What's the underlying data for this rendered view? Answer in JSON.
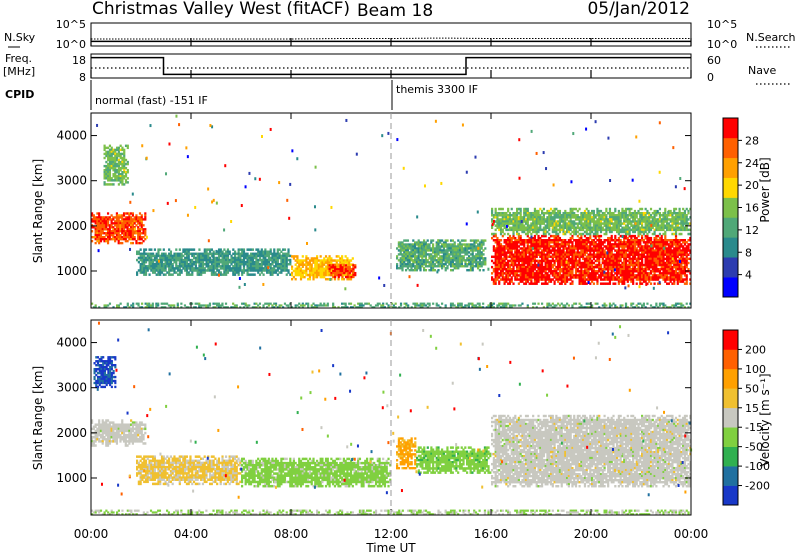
{
  "header": {
    "station": "Christmas Valley West (fitACF)",
    "beam": "Beam 18",
    "date": "05/Jan/2012"
  },
  "nsky": {
    "label": "N.Sky",
    "left_ticks": [
      "10^5",
      "10^0"
    ],
    "right_label": "N.Search",
    "right_ticks": [
      "10^5",
      "10^0"
    ]
  },
  "freq": {
    "label_line1": "Freq.",
    "label_line2": "[MHz]",
    "left_ticks": [
      "18",
      "8"
    ],
    "right_label": "Nave",
    "right_ticks": [
      "60",
      "0"
    ]
  },
  "cpid": {
    "label": "CPID",
    "mode1": "normal (fast) -151 IF",
    "mode2": "themis 3300 IF"
  },
  "time_axis": {
    "label": "Time UT",
    "ticks": [
      "00:00",
      "04:00",
      "08:00",
      "12:00",
      "16:00",
      "20:00",
      "00:00"
    ]
  },
  "power_panel": {
    "ylabel": "Slant Range [km]",
    "yticks": [
      "1000",
      "2000",
      "3000",
      "4000"
    ],
    "colorbar_label": "Power [dB]",
    "colorbar_ticks": [
      "28",
      "24",
      "20",
      "16",
      "12",
      "8",
      "4"
    ],
    "colors": [
      "#0000ff",
      "#2c3cb0",
      "#2a8a8c",
      "#50a878",
      "#7cc04a",
      "#ffd800",
      "#ffa000",
      "#ff6000",
      "#ff0000"
    ]
  },
  "velocity_panel": {
    "ylabel": "Slant Range [km]",
    "yticks": [
      "1000",
      "2000",
      "3000",
      "4000"
    ],
    "colorbar_label": "Velocity [m s⁻¹]",
    "colorbar_ticks": [
      "200",
      "100",
      "50",
      "15",
      "-15",
      "-50",
      "-100",
      "-200"
    ],
    "colors": [
      "#1838c8",
      "#2070a0",
      "#30b050",
      "#80d040",
      "#c8c8c0",
      "#f0c030",
      "#ffa000",
      "#ff6000",
      "#ff0000"
    ]
  },
  "chart_data": [
    {
      "type": "line",
      "title": "N.Sky / N.Search",
      "x_unit": "hours UT",
      "xlim": [
        0,
        24
      ],
      "series": [
        {
          "name": "N.Sky",
          "x": [
            0,
            2,
            4,
            6,
            8,
            10,
            12,
            14,
            16,
            18,
            20,
            22,
            24
          ],
          "values": [
            1.0,
            1.0,
            1.0,
            1.0,
            1.0,
            1.0,
            1.0,
            1.0,
            1.0,
            1.0,
            1.0,
            1.0,
            1.0
          ]
        },
        {
          "name": "N.Search",
          "x": [
            0,
            2,
            4,
            6,
            8,
            10,
            12,
            14,
            16,
            18,
            20,
            22,
            24
          ],
          "values": [
            1.2,
            1.2,
            1.2,
            1.2,
            1.2,
            1.3,
            1.3,
            1.4,
            1.3,
            1.3,
            1.3,
            1.3,
            1.3
          ]
        }
      ]
    },
    {
      "type": "line",
      "title": "Frequency / Nave",
      "x_unit": "hours UT",
      "xlim": [
        0,
        24
      ],
      "ylim": [
        8,
        18
      ],
      "series": [
        {
          "name": "Freq. [MHz]",
          "x": [
            0,
            2.9,
            2.9,
            15,
            15,
            24
          ],
          "values": [
            16.5,
            16.5,
            9.5,
            9.5,
            16.5,
            16.5
          ]
        },
        {
          "name": "Nave",
          "x": [
            0,
            6,
            12,
            18,
            24
          ],
          "values": [
            25,
            25,
            25,
            25,
            25
          ]
        }
      ]
    },
    {
      "type": "heatmap",
      "title": "Power [dB]",
      "xlabel": "Time UT",
      "ylabel": "Slant Range [km]",
      "xlim": [
        0,
        24
      ],
      "ylim": [
        180,
        4500
      ],
      "zlim": [
        0,
        30
      ],
      "regions": [
        {
          "t_start": 0.0,
          "t_end": 2.2,
          "r_low": 1600,
          "r_high": 2300,
          "value": 26
        },
        {
          "t_start": 0.5,
          "t_end": 1.5,
          "r_low": 2900,
          "r_high": 3800,
          "value": 14
        },
        {
          "t_start": 1.8,
          "t_end": 8.0,
          "r_low": 900,
          "r_high": 1500,
          "value": 10
        },
        {
          "t_start": 8.0,
          "t_end": 10.5,
          "r_low": 800,
          "r_high": 1350,
          "value": 20
        },
        {
          "t_start": 9.5,
          "t_end": 10.6,
          "r_low": 850,
          "r_high": 1150,
          "value": 27
        },
        {
          "t_start": 12.2,
          "t_end": 15.8,
          "r_low": 1000,
          "r_high": 1700,
          "value": 12
        },
        {
          "t_start": 16.0,
          "t_end": 24.0,
          "r_low": 700,
          "r_high": 1800,
          "value": 28
        },
        {
          "t_start": 16.0,
          "t_end": 24.0,
          "r_low": 1800,
          "r_high": 2400,
          "value": 14
        },
        {
          "t_start": 0.0,
          "t_end": 24.0,
          "r_low": 180,
          "r_high": 300,
          "value": 12
        }
      ]
    },
    {
      "type": "heatmap",
      "title": "Velocity [m s⁻¹]",
      "xlabel": "Time UT",
      "ylabel": "Slant Range [km]",
      "xlim": [
        0,
        24
      ],
      "ylim": [
        180,
        4500
      ],
      "zlim": [
        -250,
        250
      ],
      "regions": [
        {
          "t_start": 0.0,
          "t_end": 2.2,
          "r_low": 1700,
          "r_high": 2300,
          "value": 0
        },
        {
          "t_start": 0.1,
          "t_end": 1.0,
          "r_low": 3000,
          "r_high": 3700,
          "value": -200
        },
        {
          "t_start": 1.8,
          "t_end": 6.0,
          "r_low": 850,
          "r_high": 1500,
          "value": 40
        },
        {
          "t_start": 6.0,
          "t_end": 12.0,
          "r_low": 800,
          "r_high": 1450,
          "value": -50
        },
        {
          "t_start": 12.2,
          "t_end": 13.0,
          "r_low": 1200,
          "r_high": 1900,
          "value": 100
        },
        {
          "t_start": 13.0,
          "t_end": 16.0,
          "r_low": 1100,
          "r_high": 1700,
          "value": -60
        },
        {
          "t_start": 16.0,
          "t_end": 24.0,
          "r_low": 800,
          "r_high": 2400,
          "value": 0
        },
        {
          "t_start": 0.0,
          "t_end": 24.0,
          "r_low": 180,
          "r_high": 300,
          "value": -30
        }
      ]
    }
  ]
}
